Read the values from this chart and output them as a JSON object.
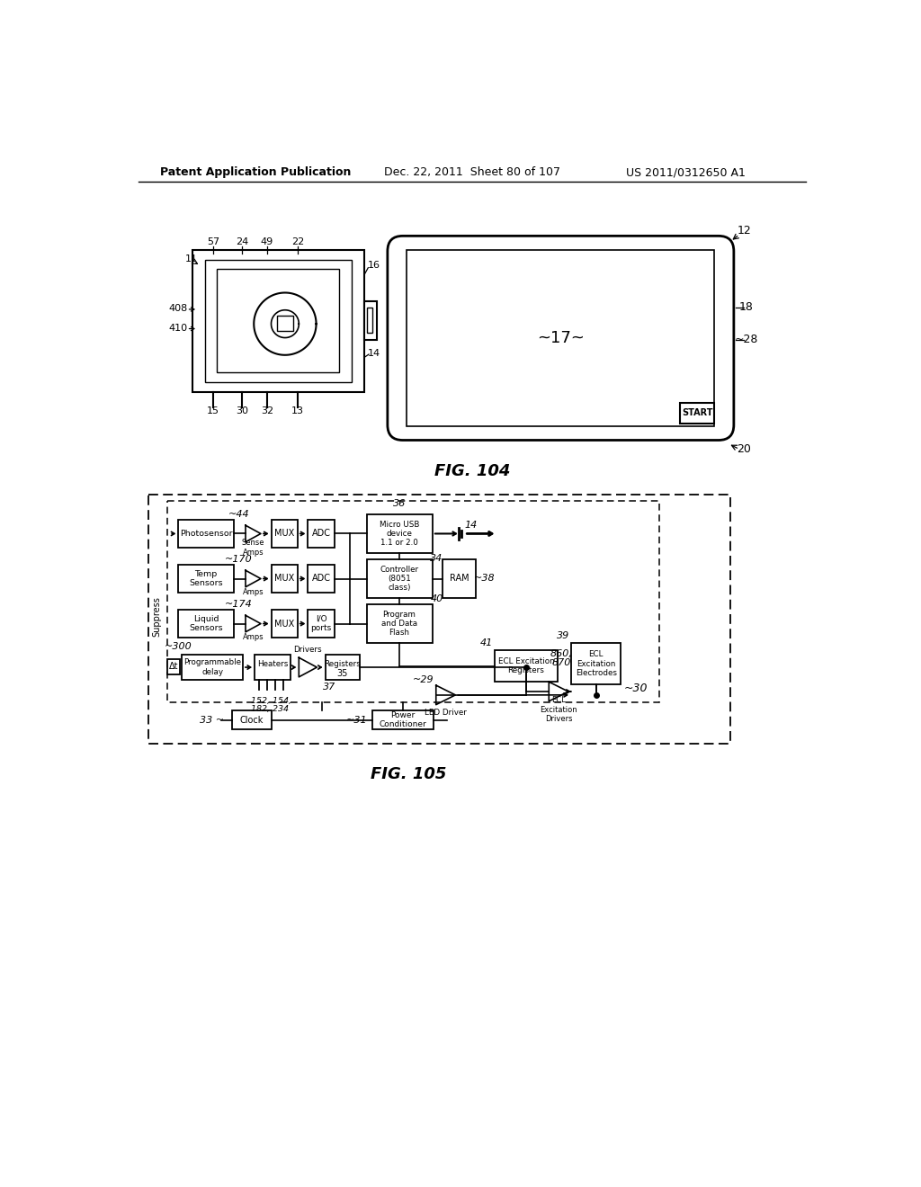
{
  "header_left": "Patent Application Publication",
  "header_mid": "Dec. 22, 2011  Sheet 80 of 107",
  "header_right": "US 2011/0312650 A1",
  "fig104_label": "FIG. 104",
  "fig105_label": "FIG. 105",
  "bg_color": "#ffffff"
}
